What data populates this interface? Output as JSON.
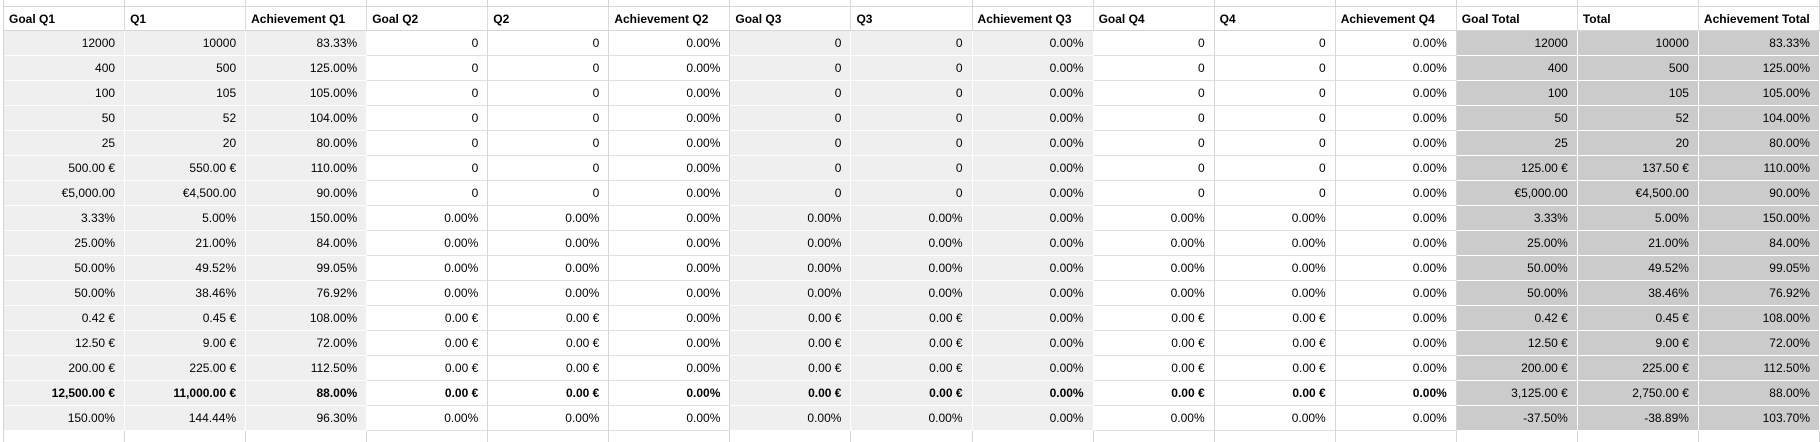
{
  "sheet": {
    "columns": [
      {
        "label": "Goal Q1",
        "group": "q1"
      },
      {
        "label": "Q1",
        "group": "q1"
      },
      {
        "label": "Achievement Q1",
        "group": "q1"
      },
      {
        "label": "Goal Q2",
        "group": "q2"
      },
      {
        "label": "Q2",
        "group": "q2"
      },
      {
        "label": "Achievement Q2",
        "group": "q2"
      },
      {
        "label": "Goal Q3",
        "group": "q3"
      },
      {
        "label": "Q3",
        "group": "q3"
      },
      {
        "label": "Achievement Q3",
        "group": "q3"
      },
      {
        "label": "Goal Q4",
        "group": "q4"
      },
      {
        "label": "Q4",
        "group": "q4"
      },
      {
        "label": "Achievement Q4",
        "group": "q4"
      },
      {
        "label": "Goal Total",
        "group": "total"
      },
      {
        "label": "Total",
        "group": "total"
      },
      {
        "label": "Achievement Total",
        "group": "total"
      }
    ],
    "rows": [
      [
        "12000",
        "10000",
        "83.33%",
        "0",
        "0",
        "0.00%",
        "0",
        "0",
        "0.00%",
        "0",
        "0",
        "0.00%",
        "12000",
        "10000",
        "83.33%"
      ],
      [
        "400",
        "500",
        "125.00%",
        "0",
        "0",
        "0.00%",
        "0",
        "0",
        "0.00%",
        "0",
        "0",
        "0.00%",
        "400",
        "500",
        "125.00%"
      ],
      [
        "100",
        "105",
        "105.00%",
        "0",
        "0",
        "0.00%",
        "0",
        "0",
        "0.00%",
        "0",
        "0",
        "0.00%",
        "100",
        "105",
        "105.00%"
      ],
      [
        "50",
        "52",
        "104.00%",
        "0",
        "0",
        "0.00%",
        "0",
        "0",
        "0.00%",
        "0",
        "0",
        "0.00%",
        "50",
        "52",
        "104.00%"
      ],
      [
        "25",
        "20",
        "80.00%",
        "0",
        "0",
        "0.00%",
        "0",
        "0",
        "0.00%",
        "0",
        "0",
        "0.00%",
        "25",
        "20",
        "80.00%"
      ],
      [
        "500.00 €",
        "550.00 €",
        "110.00%",
        "0",
        "0",
        "0.00%",
        "0",
        "0",
        "0.00%",
        "0",
        "0",
        "0.00%",
        "125.00 €",
        "137.50 €",
        "110.00%"
      ],
      [
        "€5,000.00",
        "€4,500.00",
        "90.00%",
        "0",
        "0",
        "0.00%",
        "0",
        "0",
        "0.00%",
        "0",
        "0",
        "0.00%",
        "€5,000.00",
        "€4,500.00",
        "90.00%"
      ],
      [
        "3.33%",
        "5.00%",
        "150.00%",
        "0.00%",
        "0.00%",
        "0.00%",
        "0.00%",
        "0.00%",
        "0.00%",
        "0.00%",
        "0.00%",
        "0.00%",
        "3.33%",
        "5.00%",
        "150.00%"
      ],
      [
        "25.00%",
        "21.00%",
        "84.00%",
        "0.00%",
        "0.00%",
        "0.00%",
        "0.00%",
        "0.00%",
        "0.00%",
        "0.00%",
        "0.00%",
        "0.00%",
        "25.00%",
        "21.00%",
        "84.00%"
      ],
      [
        "50.00%",
        "49.52%",
        "99.05%",
        "0.00%",
        "0.00%",
        "0.00%",
        "0.00%",
        "0.00%",
        "0.00%",
        "0.00%",
        "0.00%",
        "0.00%",
        "50.00%",
        "49.52%",
        "99.05%"
      ],
      [
        "50.00%",
        "38.46%",
        "76.92%",
        "0.00%",
        "0.00%",
        "0.00%",
        "0.00%",
        "0.00%",
        "0.00%",
        "0.00%",
        "0.00%",
        "0.00%",
        "50.00%",
        "38.46%",
        "76.92%"
      ],
      [
        "0.42 €",
        "0.45 €",
        "108.00%",
        "0.00 €",
        "0.00 €",
        "0.00%",
        "0.00 €",
        "0.00 €",
        "0.00%",
        "0.00 €",
        "0.00 €",
        "0.00%",
        "0.42 €",
        "0.45 €",
        "108.00%"
      ],
      [
        "12.50 €",
        "9.00 €",
        "72.00%",
        "0.00 €",
        "0.00 €",
        "0.00%",
        "0.00 €",
        "0.00 €",
        "0.00%",
        "0.00 €",
        "0.00 €",
        "0.00%",
        "12.50 €",
        "9.00 €",
        "72.00%"
      ],
      [
        "200.00 €",
        "225.00 €",
        "112.50%",
        "0.00 €",
        "0.00 €",
        "0.00%",
        "0.00 €",
        "0.00 €",
        "0.00%",
        "0.00 €",
        "0.00 €",
        "0.00%",
        "200.00 €",
        "225.00 €",
        "112.50%"
      ],
      [
        "12,500.00 €",
        "11,000.00 €",
        "88.00%",
        "0.00 €",
        "0.00 €",
        "0.00%",
        "0.00 €",
        "0.00 €",
        "0.00%",
        "0.00 €",
        "0.00 €",
        "0.00%",
        "3,125.00 €",
        "2,750.00 €",
        "88.00%"
      ],
      [
        "150.00%",
        "144.44%",
        "96.30%",
        "0.00%",
        "0.00%",
        "0.00%",
        "0.00%",
        "0.00%",
        "0.00%",
        "0.00%",
        "0.00%",
        "0.00%",
        "-37.50%",
        "-38.89%",
        "103.70%"
      ]
    ],
    "bold_row_index": 14,
    "bold_row_bold_col_count": 12,
    "colors": {
      "group_fill_light": "#efefef",
      "group_fill_dark": "#cbcbcb",
      "gridline": "#d6d6d6",
      "horizontal_gridline": "#e0e0e0",
      "header_gridline": "#dadada",
      "row_separator": "#ffffff",
      "text": "#000000"
    }
  }
}
